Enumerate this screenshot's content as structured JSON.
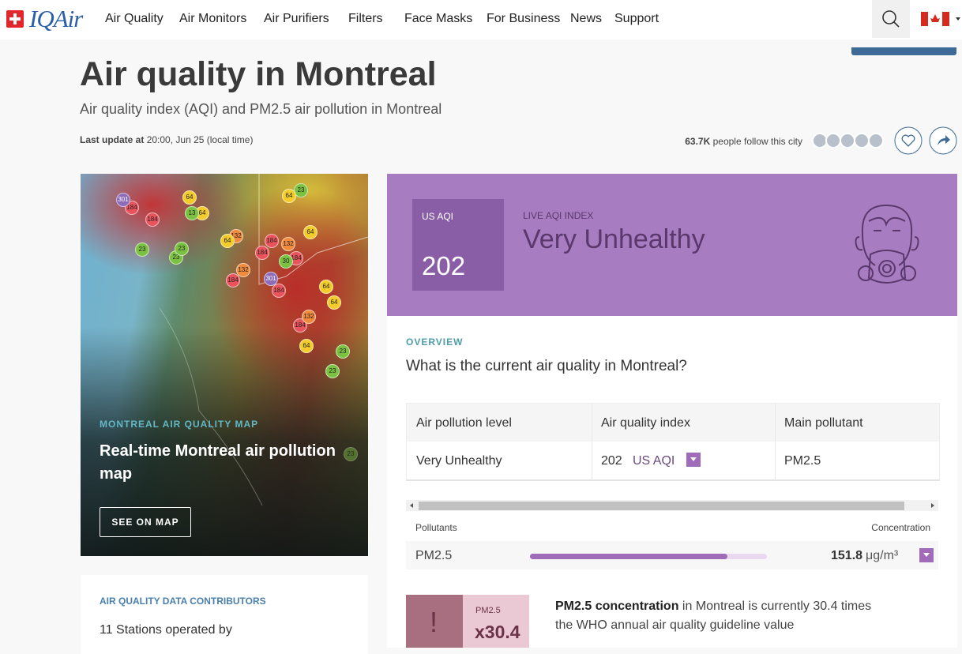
{
  "nav": {
    "brand": "IQAir",
    "items": [
      "Air Quality",
      "Air Monitors",
      "Air Purifiers",
      "Filters",
      "Face Masks",
      "For Business",
      "News",
      "Support"
    ]
  },
  "header": {
    "title": "Air quality in Montreal",
    "subtitle": "Air quality index (AQI) and PM2.5 air pollution in Montreal",
    "last_update_label": "Last update at",
    "last_update": "20:00, Jun 25 (local time)",
    "followers": "63.7K",
    "followers_text": "people follow this city"
  },
  "map_card": {
    "eyebrow": "MONTREAL AIR QUALITY MAP",
    "title": "Real-time Montreal air pollution map",
    "button": "SEE ON MAP",
    "markers": [
      301,
      184,
      184,
      64,
      13,
      64,
      64,
      23,
      23,
      23,
      23,
      64,
      132,
      184,
      132,
      64,
      184,
      30,
      184,
      132,
      301,
      184,
      184,
      64,
      64,
      132,
      184,
      64,
      23,
      23,
      23
    ]
  },
  "aqi_card": {
    "label": "US AQI",
    "value": 202,
    "live_label": "LIVE AQI INDEX",
    "status": "Very Unhealthy"
  },
  "overview": {
    "eyebrow": "OVERVIEW",
    "question": "What is the current air quality in Montreal?",
    "table": {
      "headers": [
        "Air pollution level",
        "Air quality index",
        "Main pollutant"
      ],
      "row": {
        "level": "Very Unhealthy",
        "aqi": 202,
        "aqi_unit": "US AQI",
        "pollutant": "PM2.5"
      }
    }
  },
  "pollutants": {
    "header_left": "Pollutants",
    "header_right": "Concentration",
    "rows": [
      {
        "name": "PM2.5",
        "value": 151.8,
        "unit": "μg/m³"
      }
    ]
  },
  "guideline": {
    "pollutant": "PM2.5",
    "multiple": "x30.4",
    "bold": "PM2.5 concentration",
    "text": " in Montreal is currently 30.4 times the WHO annual air quality guideline value"
  },
  "contributors": {
    "title": "AIR QUALITY DATA CONTRIBUTORS",
    "text": "11 Stations operated by"
  }
}
